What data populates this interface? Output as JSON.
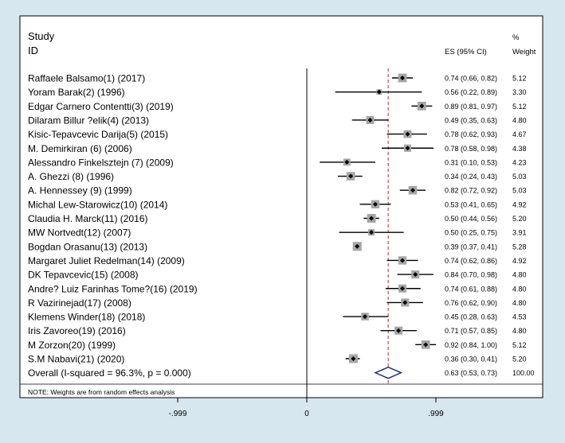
{
  "chart_data": {
    "type": "forest",
    "header": {
      "study_line1": "Study",
      "study_line2": "ID",
      "es_label": "ES (95% CI)",
      "weight_line1": "%",
      "weight_line2": "Weight"
    },
    "xaxis": {
      "min": -0.999,
      "max": 0.999,
      "ticks": [
        {
          "value": -0.999,
          "label": "-.999"
        },
        {
          "value": 0,
          "label": "0"
        },
        {
          "value": 0.999,
          "label": ".999"
        }
      ],
      "plot_min": -0.999,
      "plot_max": 1.12
    },
    "overall_line": 0.63,
    "studies": [
      {
        "label": "Raffaele Balsamo(1) (2017)",
        "es": 0.74,
        "lo": 0.66,
        "hi": 0.82,
        "es_text": "0.74 (0.66, 0.82)",
        "weight": "5.12"
      },
      {
        "label": "Yoram Barak(2) (1996)",
        "es": 0.56,
        "lo": 0.22,
        "hi": 0.89,
        "es_text": "0.56 (0.22, 0.89)",
        "weight": "3.30"
      },
      {
        "label": "Edgar Carnero Contentti(3) (2019)",
        "es": 0.89,
        "lo": 0.81,
        "hi": 0.97,
        "es_text": "0.89 (0.81, 0.97)",
        "weight": "5.12"
      },
      {
        "label": "Dilaram Billur ?elik(4) (2013)",
        "es": 0.49,
        "lo": 0.35,
        "hi": 0.63,
        "es_text": "0.49 (0.35, 0.63)",
        "weight": "4.80"
      },
      {
        "label": "Kisic-Tepavcevic Darija(5) (2015)",
        "es": 0.78,
        "lo": 0.62,
        "hi": 0.93,
        "es_text": "0.78 (0.62, 0.93)",
        "weight": "4.67"
      },
      {
        "label": "M. Demirkiran (6) (2006)",
        "es": 0.78,
        "lo": 0.58,
        "hi": 0.98,
        "es_text": "0.78 (0.58, 0.98)",
        "weight": "4.38"
      },
      {
        "label": "Alessandro Finkelsztejn (7) (2009)",
        "es": 0.31,
        "lo": 0.1,
        "hi": 0.53,
        "es_text": "0.31 (0.10, 0.53)",
        "weight": "4.23"
      },
      {
        "label": "A. Ghezzi (8) (1996)",
        "es": 0.34,
        "lo": 0.24,
        "hi": 0.43,
        "es_text": "0.34 (0.24, 0.43)",
        "weight": "5.03"
      },
      {
        "label": "A. Hennessey (9) (1999)",
        "es": 0.82,
        "lo": 0.72,
        "hi": 0.92,
        "es_text": "0.82 (0.72, 0.92)",
        "weight": "5.03"
      },
      {
        "label": "Michal Lew-Starowicz(10) (2014)",
        "es": 0.53,
        "lo": 0.41,
        "hi": 0.65,
        "es_text": "0.53 (0.41, 0.65)",
        "weight": "4.92"
      },
      {
        "label": "Claudia H. Marck(11) (2016)",
        "es": 0.5,
        "lo": 0.44,
        "hi": 0.56,
        "es_text": "0.50 (0.44, 0.56)",
        "weight": "5.20"
      },
      {
        "label": "MW Nortvedt(12) (2007)",
        "es": 0.5,
        "lo": 0.25,
        "hi": 0.75,
        "es_text": "0.50 (0.25, 0.75)",
        "weight": "3.91"
      },
      {
        "label": "Bogdan Orasanu(13) (2013)",
        "es": 0.39,
        "lo": 0.37,
        "hi": 0.41,
        "es_text": "0.39 (0.37, 0.41)",
        "weight": "5.28"
      },
      {
        "label": "Margaret Juliet Redelman(14) (2009)",
        "es": 0.74,
        "lo": 0.62,
        "hi": 0.86,
        "es_text": "0.74 (0.62, 0.86)",
        "weight": "4.92"
      },
      {
        "label": "DK Tepavcevic(15) (2008)",
        "es": 0.84,
        "lo": 0.7,
        "hi": 0.98,
        "es_text": "0.84 (0.70, 0.98)",
        "weight": "4.80"
      },
      {
        "label": "Andre? Luiz Farinhas Tome?(16) (2019)",
        "es": 0.74,
        "lo": 0.61,
        "hi": 0.88,
        "es_text": "0.74 (0.61, 0.88)",
        "weight": "4.80"
      },
      {
        "label": "R Vazirinejad(17) (2008)",
        "es": 0.76,
        "lo": 0.62,
        "hi": 0.9,
        "es_text": "0.76 (0.62, 0.90)",
        "weight": "4.80"
      },
      {
        "label": "Klemens Winder(18) (2018)",
        "es": 0.45,
        "lo": 0.28,
        "hi": 0.63,
        "es_text": "0.45 (0.28, 0.63)",
        "weight": "4.53"
      },
      {
        "label": "Iris Zavoreo(19) (2016)",
        "es": 0.71,
        "lo": 0.57,
        "hi": 0.85,
        "es_text": "0.71 (0.57, 0.85)",
        "weight": "4.80"
      },
      {
        "label": "M Zorzon(20) (1999)",
        "es": 0.92,
        "lo": 0.84,
        "hi": 1.0,
        "es_text": "0.92 (0.84, 1.00)",
        "weight": "5.12"
      },
      {
        "label": "S.M Nabavi(21) (2020)",
        "es": 0.36,
        "lo": 0.3,
        "hi": 0.41,
        "es_text": "0.36 (0.30, 0.41)",
        "weight": "5.20"
      }
    ],
    "overall": {
      "label": "Overall  (I-squared = 96.3%, p = 0.000)",
      "es": 0.63,
      "lo": 0.53,
      "hi": 0.73,
      "es_text": "0.63 (0.53, 0.73)",
      "weight": "100.00"
    },
    "note": "NOTE: Weights are from random effects analysis"
  }
}
